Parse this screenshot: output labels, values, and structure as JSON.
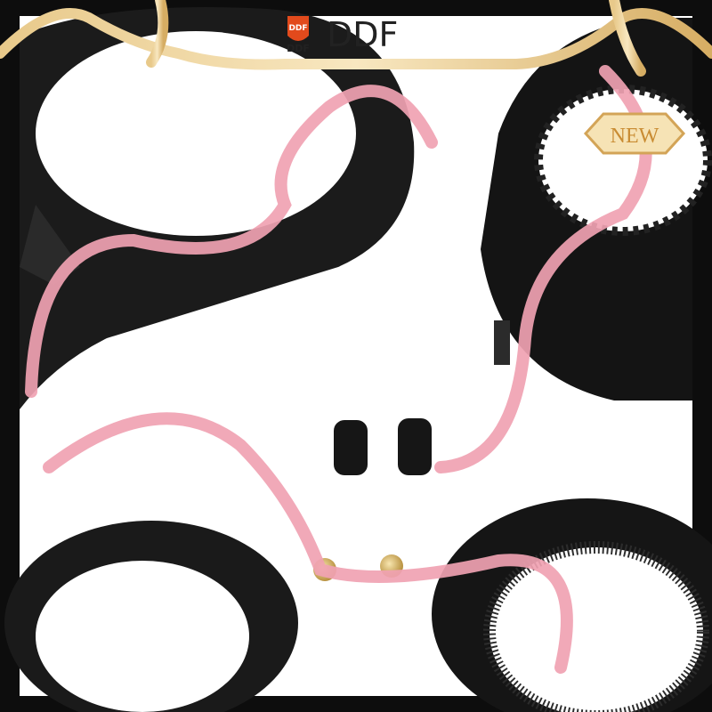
{
  "brand": {
    "badge": "DDF",
    "name": "DDF"
  },
  "tag": "NEW"
}
